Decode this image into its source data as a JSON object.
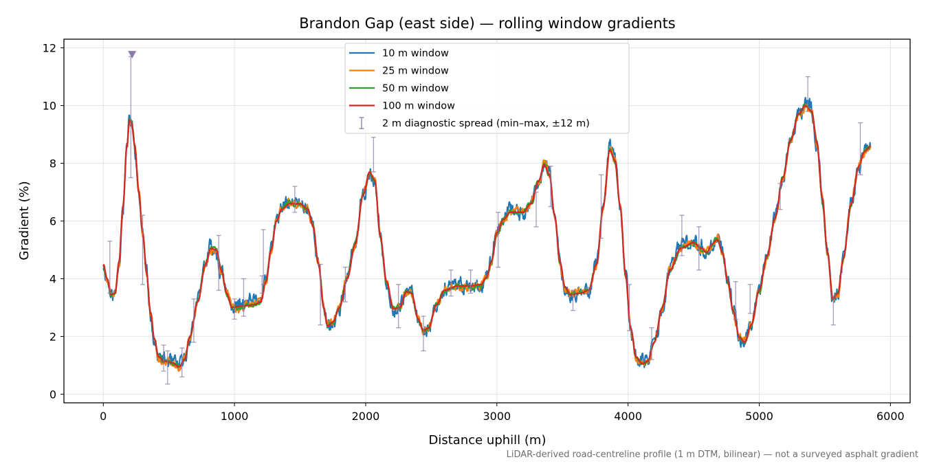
{
  "chart_data": {
    "type": "line",
    "title": "Brandon Gap (east side) — rolling window gradients",
    "xlabel": "Distance uphill (m)",
    "ylabel": "Gradient (%)",
    "footnote": "LiDAR-derived road-centreline profile (1 m DTM, bilinear) — not a surveyed asphalt gradient",
    "xlim": [
      -300,
      6150
    ],
    "ylim": [
      -0.3,
      12.3
    ],
    "xticks": [
      0,
      1000,
      2000,
      3000,
      4000,
      5000,
      6000
    ],
    "yticks": [
      0,
      2,
      4,
      6,
      8,
      10,
      12
    ],
    "grid": true,
    "legend_position": "top-center",
    "outlier_marker": {
      "x": 220,
      "y": 11.75,
      "color": "#8c7aab"
    },
    "series": [
      {
        "name": "10 m window",
        "color": "#1f77b4",
        "noise": 0.26,
        "seed": 11
      },
      {
        "name": "25 m window",
        "color": "#ff7f0e",
        "noise": 0.15,
        "seed": 23
      },
      {
        "name": "50 m window",
        "color": "#2ca02c",
        "noise": 0.08,
        "seed": 37
      },
      {
        "name": "100 m window",
        "color": "#d62728",
        "noise": 0.0,
        "seed": 0
      }
    ],
    "baseline_profile": [
      [
        0,
        4.5
      ],
      [
        30,
        4.0
      ],
      [
        60,
        3.45
      ],
      [
        90,
        3.5
      ],
      [
        120,
        4.6
      ],
      [
        150,
        6.5
      ],
      [
        180,
        8.6
      ],
      [
        200,
        9.5
      ],
      [
        215,
        9.4
      ],
      [
        240,
        8.6
      ],
      [
        270,
        7.0
      ],
      [
        300,
        5.6
      ],
      [
        330,
        4.2
      ],
      [
        360,
        2.8
      ],
      [
        390,
        1.9
      ],
      [
        420,
        1.3
      ],
      [
        460,
        1.15
      ],
      [
        520,
        1.1
      ],
      [
        580,
        0.95
      ],
      [
        620,
        1.2
      ],
      [
        660,
        2.0
      ],
      [
        720,
        3.2
      ],
      [
        780,
        4.5
      ],
      [
        820,
        5.05
      ],
      [
        860,
        5.0
      ],
      [
        900,
        4.3
      ],
      [
        940,
        3.5
      ],
      [
        980,
        3.0
      ],
      [
        1050,
        3.05
      ],
      [
        1150,
        3.1
      ],
      [
        1200,
        3.2
      ],
      [
        1240,
        3.9
      ],
      [
        1280,
        5.0
      ],
      [
        1320,
        6.0
      ],
      [
        1360,
        6.4
      ],
      [
        1420,
        6.6
      ],
      [
        1500,
        6.6
      ],
      [
        1560,
        6.4
      ],
      [
        1600,
        5.8
      ],
      [
        1640,
        4.5
      ],
      [
        1680,
        3.0
      ],
      [
        1710,
        2.35
      ],
      [
        1750,
        2.5
      ],
      [
        1800,
        3.0
      ],
      [
        1860,
        4.0
      ],
      [
        1920,
        5.2
      ],
      [
        1980,
        6.9
      ],
      [
        2030,
        7.7
      ],
      [
        2070,
        7.4
      ],
      [
        2110,
        5.5
      ],
      [
        2160,
        3.9
      ],
      [
        2210,
        2.95
      ],
      [
        2260,
        3.0
      ],
      [
        2310,
        3.55
      ],
      [
        2350,
        3.5
      ],
      [
        2400,
        2.6
      ],
      [
        2440,
        2.2
      ],
      [
        2480,
        2.3
      ],
      [
        2540,
        3.1
      ],
      [
        2600,
        3.6
      ],
      [
        2700,
        3.75
      ],
      [
        2800,
        3.75
      ],
      [
        2880,
        3.8
      ],
      [
        2920,
        4.05
      ],
      [
        2960,
        4.6
      ],
      [
        3000,
        5.6
      ],
      [
        3050,
        6.05
      ],
      [
        3100,
        6.3
      ],
      [
        3200,
        6.3
      ],
      [
        3260,
        6.6
      ],
      [
        3320,
        7.4
      ],
      [
        3360,
        7.95
      ],
      [
        3400,
        7.6
      ],
      [
        3440,
        6.2
      ],
      [
        3480,
        4.6
      ],
      [
        3520,
        3.7
      ],
      [
        3560,
        3.45
      ],
      [
        3640,
        3.5
      ],
      [
        3700,
        3.6
      ],
      [
        3760,
        4.5
      ],
      [
        3810,
        6.5
      ],
      [
        3860,
        8.45
      ],
      [
        3900,
        8.1
      ],
      [
        3940,
        6.5
      ],
      [
        3980,
        4.2
      ],
      [
        4020,
        2.3
      ],
      [
        4060,
        1.3
      ],
      [
        4110,
        1.05
      ],
      [
        4150,
        1.15
      ],
      [
        4200,
        1.8
      ],
      [
        4260,
        3.0
      ],
      [
        4320,
        4.3
      ],
      [
        4400,
        5.05
      ],
      [
        4500,
        5.25
      ],
      [
        4560,
        5.05
      ],
      [
        4600,
        4.9
      ],
      [
        4640,
        5.2
      ],
      [
        4680,
        5.35
      ],
      [
        4720,
        4.9
      ],
      [
        4760,
        3.9
      ],
      [
        4800,
        2.9
      ],
      [
        4850,
        1.95
      ],
      [
        4890,
        1.8
      ],
      [
        4940,
        2.4
      ],
      [
        5000,
        3.6
      ],
      [
        5060,
        4.8
      ],
      [
        5120,
        6.1
      ],
      [
        5180,
        7.5
      ],
      [
        5240,
        8.8
      ],
      [
        5300,
        9.7
      ],
      [
        5350,
        10.0
      ],
      [
        5400,
        9.8
      ],
      [
        5440,
        8.7
      ],
      [
        5480,
        6.8
      ],
      [
        5520,
        4.9
      ],
      [
        5560,
        3.3
      ],
      [
        5600,
        3.5
      ],
      [
        5640,
        4.7
      ],
      [
        5700,
        6.6
      ],
      [
        5760,
        7.9
      ],
      [
        5800,
        8.4
      ],
      [
        5850,
        8.6
      ]
    ],
    "diagnostic_spread": {
      "name": "2 m diagnostic spread (min–max, ±12 m)",
      "color": "#8c7aab",
      "points": [
        {
          "x": 50,
          "min": 3.5,
          "max": 5.3
        },
        {
          "x": 210,
          "min": 7.5,
          "max": 11.7
        },
        {
          "x": 300,
          "min": 3.8,
          "max": 6.2
        },
        {
          "x": 460,
          "min": 0.8,
          "max": 1.7
        },
        {
          "x": 490,
          "min": 0.35,
          "max": 1.5
        },
        {
          "x": 600,
          "min": 0.6,
          "max": 1.6
        },
        {
          "x": 690,
          "min": 1.8,
          "max": 3.3
        },
        {
          "x": 880,
          "min": 3.6,
          "max": 5.5
        },
        {
          "x": 1000,
          "min": 2.6,
          "max": 3.3
        },
        {
          "x": 1070,
          "min": 2.7,
          "max": 4.0
        },
        {
          "x": 1210,
          "min": 3.5,
          "max": 4.1
        },
        {
          "x": 1220,
          "min": 3.8,
          "max": 5.7
        },
        {
          "x": 1460,
          "min": 6.3,
          "max": 7.2
        },
        {
          "x": 1655,
          "min": 2.4,
          "max": 4.5
        },
        {
          "x": 1845,
          "min": 3.2,
          "max": 4.4
        },
        {
          "x": 2060,
          "min": 7.7,
          "max": 8.9
        },
        {
          "x": 2250,
          "min": 2.3,
          "max": 3.8
        },
        {
          "x": 2440,
          "min": 1.5,
          "max": 2.7
        },
        {
          "x": 2650,
          "min": 3.4,
          "max": 4.3
        },
        {
          "x": 2800,
          "min": 3.5,
          "max": 4.3
        },
        {
          "x": 3010,
          "min": 4.4,
          "max": 6.3
        },
        {
          "x": 3300,
          "min": 5.8,
          "max": 7.0
        },
        {
          "x": 3410,
          "min": 6.5,
          "max": 7.9
        },
        {
          "x": 3580,
          "min": 2.9,
          "max": 3.6
        },
        {
          "x": 3700,
          "min": 3.5,
          "max": 3.7
        },
        {
          "x": 3795,
          "min": 5.4,
          "max": 7.6
        },
        {
          "x": 4010,
          "min": 2.2,
          "max": 3.8
        },
        {
          "x": 4180,
          "min": 1.2,
          "max": 2.3
        },
        {
          "x": 4410,
          "min": 4.8,
          "max": 6.2
        },
        {
          "x": 4540,
          "min": 4.3,
          "max": 5.8
        },
        {
          "x": 4820,
          "min": 2.6,
          "max": 3.9
        },
        {
          "x": 4930,
          "min": 2.8,
          "max": 3.8
        },
        {
          "x": 5160,
          "min": 6.4,
          "max": 7.3
        },
        {
          "x": 5370,
          "min": 9.8,
          "max": 11.0
        },
        {
          "x": 5565,
          "min": 2.4,
          "max": 3.4
        },
        {
          "x": 5770,
          "min": 7.6,
          "max": 9.4
        }
      ]
    }
  }
}
